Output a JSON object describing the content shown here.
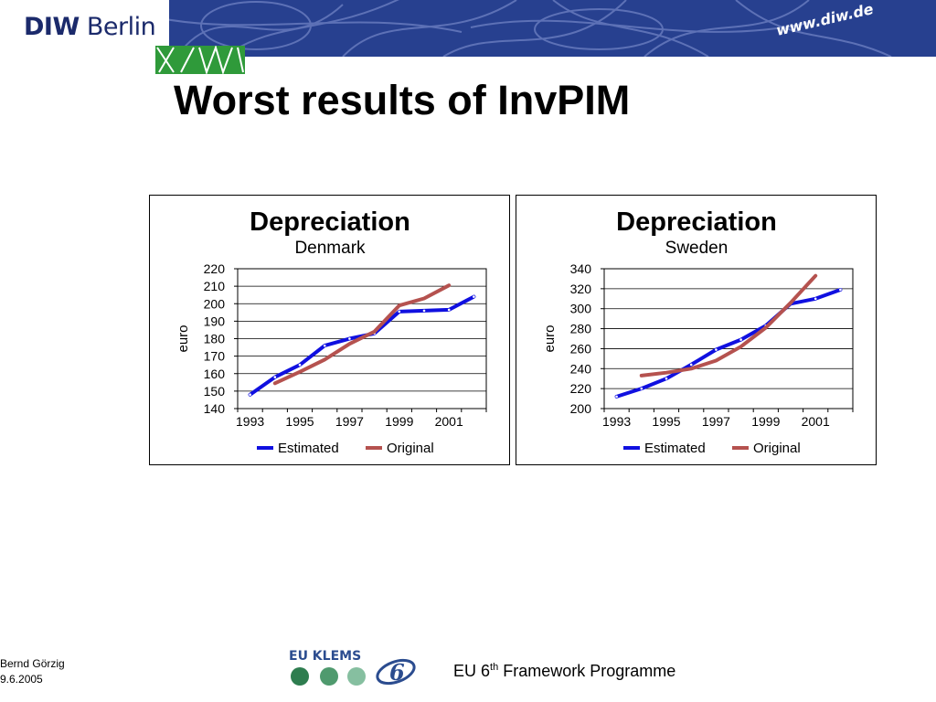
{
  "header": {
    "logo_bold": "DIW",
    "logo_light": "Berlin",
    "url": "www.diw.de",
    "brand_color": "#27408f",
    "accent_green": "#2f9a3a"
  },
  "title": "Worst results of InvPIM",
  "colors": {
    "estimated": "#1010e0",
    "original": "#b5524f"
  },
  "chart_data": [
    {
      "type": "line",
      "title": "Depreciation",
      "subtitle": "Denmark",
      "ylabel": "euro",
      "ylim": [
        140,
        220
      ],
      "yticks": [
        140,
        150,
        160,
        170,
        180,
        190,
        200,
        210,
        220
      ],
      "x": [
        1993,
        1994,
        1995,
        1996,
        1997,
        1998,
        1999,
        2000,
        2001,
        2002
      ],
      "xtick_labels": [
        "1993",
        "1995",
        "1997",
        "1999",
        "2001"
      ],
      "grid": true,
      "legend": "bottom",
      "series": [
        {
          "name": "Estimated",
          "values": [
            148,
            158,
            165,
            176,
            180,
            183,
            195.5,
            196,
            196.5,
            204
          ]
        },
        {
          "name": "Original",
          "values": [
            null,
            154.5,
            161,
            168,
            177,
            184,
            199,
            203,
            210.5,
            null
          ]
        }
      ]
    },
    {
      "type": "line",
      "title": "Depreciation",
      "subtitle": "Sweden",
      "ylabel": "euro",
      "ylim": [
        200,
        340
      ],
      "yticks": [
        200,
        220,
        240,
        260,
        280,
        300,
        320,
        340
      ],
      "x": [
        1993,
        1994,
        1995,
        1996,
        1997,
        1998,
        1999,
        2000,
        2001,
        2002
      ],
      "xtick_labels": [
        "1993",
        "1995",
        "1997",
        "1999",
        "2001"
      ],
      "grid": true,
      "legend": "bottom",
      "series": [
        {
          "name": "Estimated",
          "values": [
            212,
            220,
            230,
            244,
            259,
            269,
            283,
            305,
            310,
            319
          ]
        },
        {
          "name": "Original",
          "values": [
            null,
            233,
            236,
            240,
            248,
            262,
            281,
            306,
            333,
            null
          ]
        }
      ]
    }
  ],
  "footer": {
    "author": "Bernd Görzig",
    "date": "9.6.2005",
    "programme_prefix": "EU 6",
    "programme_sup": "th",
    "programme_suffix": " Framework Programme",
    "eu_klems_label": "EU KLEMS",
    "dot_colors": [
      "#2e7d4f",
      "#4f9a6e",
      "#86bfa0"
    ]
  }
}
